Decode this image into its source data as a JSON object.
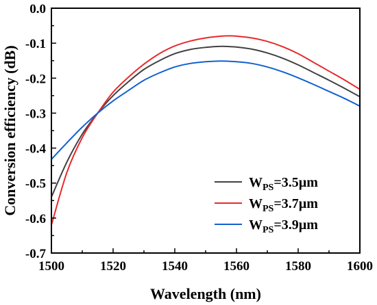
{
  "chart_data": {
    "type": "line",
    "title": "",
    "xlabel": "Wavelength (nm)",
    "ylabel": "Conversion efficiency (dB)",
    "xlim": [
      1500,
      1600
    ],
    "ylim": [
      -0.7,
      0.0
    ],
    "xticks": [
      1500,
      1520,
      1540,
      1560,
      1580,
      1600
    ],
    "yticks": [
      0.0,
      -0.1,
      -0.2,
      -0.3,
      -0.4,
      -0.5,
      -0.6,
      -0.7
    ],
    "xtick_labels": [
      "1500",
      "1520",
      "1540",
      "1560",
      "1580",
      "1600"
    ],
    "ytick_labels": [
      "0.0",
      "-0.1",
      "-0.2",
      "-0.3",
      "-0.4",
      "-0.5",
      "-0.6",
      "-0.7"
    ],
    "grid": false,
    "legend_position": "bottom-right",
    "series": [
      {
        "name": "WPS=3.5µm",
        "label_main": "W",
        "label_sub": "PS",
        "label_rest": "=3.5µm",
        "color": "#404040",
        "x": [
          1500,
          1505,
          1510,
          1515,
          1520,
          1525,
          1530,
          1535,
          1540,
          1545,
          1550,
          1555,
          1558,
          1560,
          1565,
          1570,
          1575,
          1580,
          1585,
          1590,
          1595,
          1600
        ],
        "y": [
          -0.54,
          -0.44,
          -0.36,
          -0.3,
          -0.25,
          -0.21,
          -0.175,
          -0.15,
          -0.13,
          -0.118,
          -0.112,
          -0.109,
          -0.11,
          -0.111,
          -0.117,
          -0.128,
          -0.143,
          -0.162,
          -0.184,
          -0.206,
          -0.229,
          -0.253
        ]
      },
      {
        "name": "WPS=3.7µm",
        "label_main": "W",
        "label_sub": "PS",
        "label_rest": "=3.7µm",
        "color": "#e8282b",
        "x": [
          1500,
          1505,
          1510,
          1515,
          1520,
          1525,
          1530,
          1535,
          1540,
          1545,
          1550,
          1555,
          1558,
          1560,
          1565,
          1570,
          1575,
          1580,
          1585,
          1590,
          1595,
          1600
        ],
        "y": [
          -0.62,
          -0.47,
          -0.37,
          -0.3,
          -0.24,
          -0.197,
          -0.16,
          -0.13,
          -0.108,
          -0.094,
          -0.085,
          -0.08,
          -0.079,
          -0.08,
          -0.085,
          -0.095,
          -0.11,
          -0.13,
          -0.155,
          -0.18,
          -0.205,
          -0.232
        ]
      },
      {
        "name": "WPS=3.9µm",
        "label_main": "W",
        "label_sub": "PS",
        "label_rest": "=3.9µm",
        "color": "#1060d0",
        "x": [
          1500,
          1505,
          1510,
          1515,
          1520,
          1525,
          1530,
          1535,
          1540,
          1545,
          1550,
          1555,
          1558,
          1560,
          1565,
          1570,
          1575,
          1580,
          1585,
          1590,
          1595,
          1600
        ],
        "y": [
          -0.432,
          -0.385,
          -0.34,
          -0.3,
          -0.265,
          -0.235,
          -0.206,
          -0.185,
          -0.168,
          -0.158,
          -0.153,
          -0.151,
          -0.152,
          -0.153,
          -0.158,
          -0.168,
          -0.182,
          -0.199,
          -0.218,
          -0.238,
          -0.258,
          -0.28
        ]
      }
    ]
  }
}
